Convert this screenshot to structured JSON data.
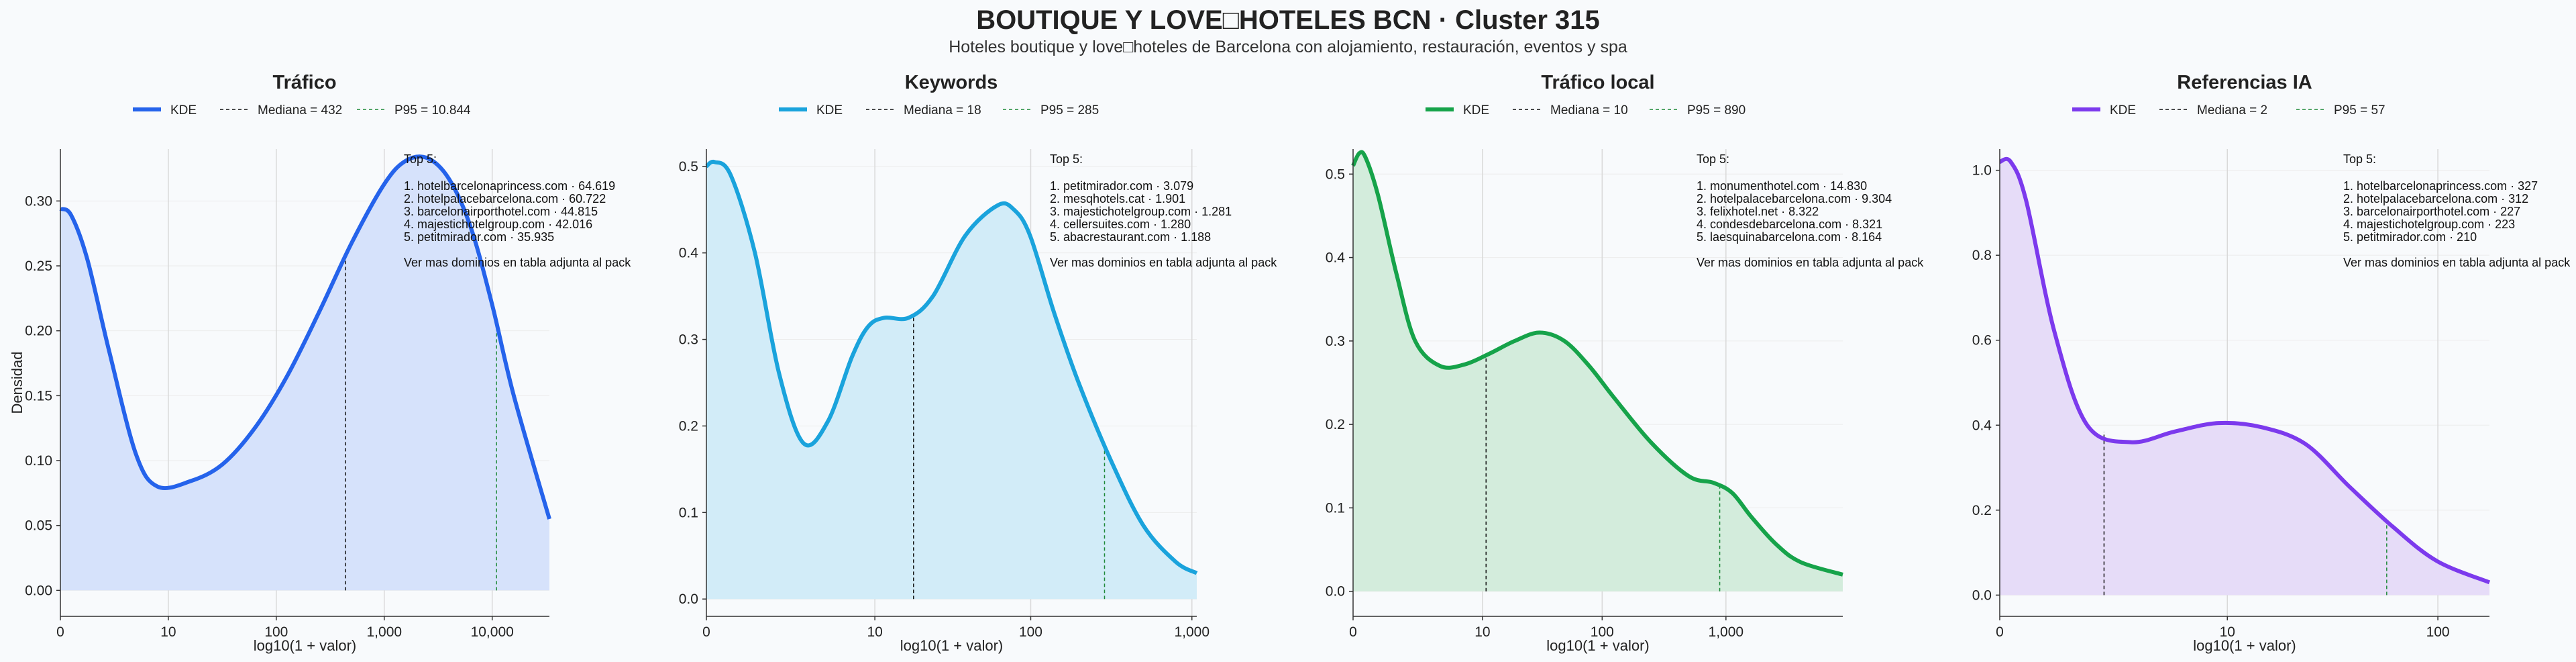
{
  "header": {
    "title": "BOUTIQUE Y LOVE□HOTELES BCN · Cluster 315",
    "subtitle": "Hoteles boutique y love□hoteles de Barcelona con alojamiento, restauración, eventos y spa"
  },
  "legend_labels": {
    "kde": "KDE"
  },
  "y_axis_label": "Densidad",
  "chart_data": [
    {
      "type": "area",
      "title": "Tráfico",
      "xlabel": "log10(1 + valor)",
      "ylabel": "Densidad",
      "x_scale": "log10(1+x)",
      "color": "#2563eb",
      "fill": "#d6e2fb",
      "xlim": [
        0,
        4.53
      ],
      "ylim": [
        -0.02,
        0.34
      ],
      "xticks": [
        0,
        1,
        2,
        3,
        4
      ],
      "xtick_labels": [
        "0",
        "10",
        "100",
        "1,000",
        "10,000"
      ],
      "yticks": [
        0,
        0.05,
        0.1,
        0.15,
        0.2,
        0.25,
        0.3
      ],
      "ytick_labels": [
        "0.00",
        "0.05",
        "0.10",
        "0.15",
        "0.20",
        "0.25",
        "0.30"
      ],
      "x": [
        0,
        0.1,
        0.25,
        0.45,
        0.7,
        0.9,
        1.2,
        1.5,
        1.8,
        2.1,
        2.4,
        2.7,
        3.0,
        3.2,
        3.4,
        3.6,
        3.8,
        4.0,
        4.2,
        4.53
      ],
      "y": [
        0.294,
        0.289,
        0.255,
        0.185,
        0.105,
        0.08,
        0.084,
        0.097,
        0.125,
        0.165,
        0.215,
        0.268,
        0.313,
        0.331,
        0.333,
        0.317,
        0.28,
        0.22,
        0.15,
        0.055
      ],
      "median": {
        "label": "Mediana = 432",
        "x": 2.64
      },
      "p95": {
        "label": "P95 = 10.844",
        "x": 4.04
      },
      "top5": {
        "heading": "Top 5:",
        "items": [
          "1. hotelbarcelonaprincess.com · 64.619",
          "2. hotelpalacebarcelona.com · 60.722",
          "3. barcelonairporthotel.com · 44.815",
          "4. majestichotelgroup.com · 42.016",
          "5. petitmirador.com · 35.935"
        ],
        "footer": "Ver mas dominios en tabla adjunta al pack"
      }
    },
    {
      "type": "area",
      "title": "Keywords",
      "xlabel": "log10(1 + valor)",
      "ylabel": "",
      "x_scale": "log10(1+x)",
      "color": "#1aa3dc",
      "fill": "#d2ecf8",
      "xlim": [
        0,
        3.03
      ],
      "ylim": [
        -0.02,
        0.52
      ],
      "xticks": [
        0,
        1.041,
        2.004,
        3.0
      ],
      "xtick_labels": [
        "0",
        "10",
        "100",
        "1,000"
      ],
      "yticks": [
        0,
        0.1,
        0.2,
        0.3,
        0.4,
        0.5
      ],
      "ytick_labels": [
        "0.0",
        "0.1",
        "0.2",
        "0.3",
        "0.4",
        "0.5"
      ],
      "x": [
        0,
        0.05,
        0.15,
        0.3,
        0.45,
        0.6,
        0.75,
        0.9,
        1.0,
        1.1,
        1.25,
        1.4,
        1.6,
        1.8,
        1.9,
        2.0,
        2.15,
        2.3,
        2.5,
        2.7,
        2.9,
        3.03
      ],
      "y": [
        0.5,
        0.505,
        0.49,
        0.4,
        0.26,
        0.18,
        0.205,
        0.28,
        0.315,
        0.325,
        0.325,
        0.35,
        0.42,
        0.455,
        0.45,
        0.42,
        0.33,
        0.25,
        0.16,
        0.085,
        0.043,
        0.03
      ],
      "median": {
        "label": "Mediana = 18",
        "x": 1.28
      },
      "p95": {
        "label": "P95 = 285",
        "x": 2.46
      },
      "top5": {
        "heading": "Top 5:",
        "items": [
          "1. petitmirador.com · 3.079",
          "2. mesqhotels.cat · 1.901",
          "3. majestichotelgroup.com · 1.281",
          "4. cellersuites.com · 1.280",
          "5. abacrestaurant.com · 1.188"
        ],
        "footer": "Ver mas dominios en tabla adjunta al pack"
      }
    },
    {
      "type": "area",
      "title": "Tráfico local",
      "xlabel": "log10(1 + valor)",
      "ylabel": "",
      "x_scale": "log10(1+x)",
      "color": "#16a34a",
      "fill": "#d3ecdc",
      "xlim": [
        0,
        3.94
      ],
      "ylim": [
        -0.03,
        0.53
      ],
      "xticks": [
        0,
        1.041,
        2.004,
        3.0
      ],
      "xtick_labels": [
        "0",
        "10",
        "100",
        "1,000"
      ],
      "yticks": [
        0,
        0.1,
        0.2,
        0.3,
        0.4,
        0.5
      ],
      "ytick_labels": [
        "0.0",
        "0.1",
        "0.2",
        "0.3",
        "0.4",
        "0.5"
      ],
      "x": [
        0,
        0.05,
        0.1,
        0.2,
        0.35,
        0.5,
        0.7,
        0.9,
        1.1,
        1.3,
        1.5,
        1.7,
        1.9,
        2.1,
        2.4,
        2.7,
        2.9,
        3.05,
        3.2,
        3.4,
        3.6,
        3.94
      ],
      "y": [
        0.51,
        0.525,
        0.52,
        0.475,
        0.38,
        0.3,
        0.27,
        0.272,
        0.285,
        0.3,
        0.31,
        0.3,
        0.27,
        0.232,
        0.178,
        0.138,
        0.13,
        0.118,
        0.09,
        0.057,
        0.035,
        0.02
      ],
      "median": {
        "label": "Mediana = 10",
        "x": 1.07
      },
      "p95": {
        "label": "P95 = 890",
        "x": 2.95
      },
      "top5": {
        "heading": "Top 5:",
        "items": [
          "1. monumenthotel.com · 14.830",
          "2. hotelpalacebarcelona.com · 9.304",
          "3. felixhotel.net · 8.322",
          "4. condesdebarcelona.com · 8.321",
          "5. laesquinabarcelona.com · 8.164"
        ],
        "footer": "Ver mas dominios en tabla adjunta al pack"
      }
    },
    {
      "type": "area",
      "title": "Referencias IA",
      "xlabel": "log10(1 + valor)",
      "ylabel": "",
      "x_scale": "log10(1+x)",
      "color": "#7c3aed",
      "fill": "#e6dcf8",
      "xlim": [
        0,
        2.24
      ],
      "ylim": [
        -0.05,
        1.05
      ],
      "xticks": [
        0,
        1.041,
        2.004
      ],
      "xtick_labels": [
        "0",
        "10",
        "100"
      ],
      "yticks": [
        0,
        0.2,
        0.4,
        0.6,
        0.8,
        1.0
      ],
      "ytick_labels": [
        "0.0",
        "0.2",
        "0.4",
        "0.6",
        "0.8",
        "1.0"
      ],
      "x": [
        0,
        0.05,
        0.12,
        0.25,
        0.4,
        0.6,
        0.8,
        1.0,
        1.2,
        1.4,
        1.6,
        1.8,
        2.0,
        2.24
      ],
      "y": [
        1.02,
        1.02,
        0.93,
        0.62,
        0.4,
        0.36,
        0.385,
        0.405,
        0.395,
        0.355,
        0.255,
        0.16,
        0.08,
        0.03
      ],
      "median": {
        "label": "Mediana = 2",
        "x": 0.477
      },
      "p95": {
        "label": "P95 = 57",
        "x": 1.77
      },
      "top5": {
        "heading": "Top 5:",
        "items": [
          "1. hotelbarcelonaprincess.com · 327",
          "2. hotelpalacebarcelona.com · 312",
          "3. barcelonairporthotel.com · 227",
          "4. majestichotelgroup.com · 223",
          "5. petitmirador.com · 210"
        ],
        "footer": "Ver mas dominios en tabla adjunta al pack"
      }
    }
  ]
}
